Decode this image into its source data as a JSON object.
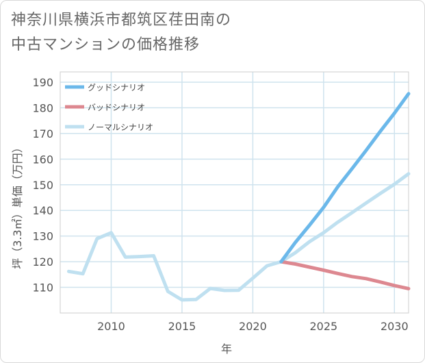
{
  "title_line1": "神奈川県横浜市都筑区荏田南の",
  "title_line2": "中古マンションの価格推移",
  "chart_data": {
    "type": "line",
    "title": "神奈川県横浜市都筑区荏田南の中古マンションの価格推移",
    "xlabel": "年",
    "ylabel": "坪（3.3㎡）単価（万円）",
    "xlim": [
      2006.4,
      2031
    ],
    "ylim": [
      100,
      194
    ],
    "xticks": [
      2010,
      2015,
      2020,
      2025,
      2030
    ],
    "yticks": [
      110,
      120,
      130,
      140,
      150,
      160,
      170,
      180,
      190
    ],
    "grid": true,
    "legend_position": "top-left",
    "series": [
      {
        "name": "グッドシナリオ",
        "color": "#6bb8ea",
        "x": [
          2022,
          2023,
          2024,
          2025,
          2026,
          2027,
          2028,
          2029,
          2030,
          2031
        ],
        "y": [
          120,
          127.5,
          134.2,
          141.2,
          149.2,
          156.2,
          163.4,
          170.8,
          177.9,
          185.5
        ]
      },
      {
        "name": "バッドシナリオ",
        "color": "#dd8890",
        "x": [
          2022,
          2023,
          2024,
          2025,
          2026,
          2027,
          2028,
          2029,
          2030,
          2031
        ],
        "y": [
          120,
          119.1,
          117.9,
          116.7,
          115.4,
          114.2,
          113.4,
          112.1,
          110.7,
          109.5
        ]
      },
      {
        "name": "ノーマルシナリオ",
        "color": "#bfe0f0",
        "x": [
          2007,
          2008,
          2009,
          2010,
          2011,
          2012,
          2013,
          2014,
          2015,
          2016,
          2017,
          2018,
          2019,
          2020,
          2021,
          2022,
          2023,
          2024,
          2025,
          2026,
          2027,
          2028,
          2029,
          2030,
          2031
        ],
        "y": [
          116.2,
          115.3,
          129,
          131.3,
          121.8,
          122,
          122.3,
          108.4,
          105.1,
          105.3,
          109.6,
          108.8,
          108.9,
          113.6,
          118.4,
          120,
          123.5,
          127.8,
          131.3,
          135.4,
          139.1,
          142.9,
          146.6,
          150.2,
          154.3
        ]
      }
    ]
  }
}
